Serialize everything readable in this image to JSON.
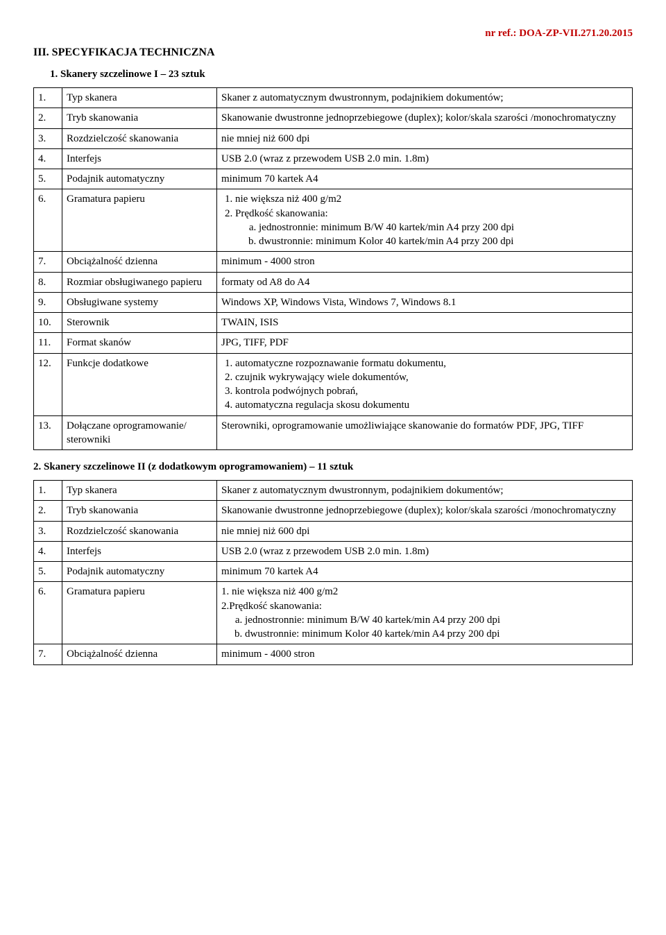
{
  "header": {
    "ref": "nr ref.: DOA-ZP-VII.271.20.2015"
  },
  "section_title": "III. SPECYFIKACJA TECHNICZNA",
  "table1_title": "1. Skanery szczelinowe I  – 23 sztuk",
  "t1": {
    "r1n": "1.",
    "r1l": "Typ skanera",
    "r1v": "Skaner z automatycznym dwustronnym, podajnikiem dokumentów;",
    "r2n": "2.",
    "r2l": "Tryb skanowania",
    "r2v": "Skanowanie dwustronne jednoprzebiegowe (duplex); kolor/skala szarości /monochromatyczny",
    "r3n": "3.",
    "r3l": "Rozdzielczość skanowania",
    "r3v": "nie mniej niż 600 dpi",
    "r4n": "4.",
    "r4l": "Interfejs",
    "r4v": "USB 2.0 (wraz z przewodem USB 2.0 min. 1.8m)",
    "r5n": "5.",
    "r5l": "Podajnik automatyczny",
    "r5v": "minimum  70  kartek A4",
    "r6n": "6.",
    "r6l": "Gramatura papieru",
    "r6_li1": "nie większa niż 400 g/m2",
    "r6_li2": "Prędkość skanowania:",
    "r6_a": "jednostronnie: minimum B/W 40 kartek/min A4 przy 200 dpi",
    "r6_b": "dwustronnie: minimum Kolor 40 kartek/min A4 przy 200 dpi",
    "r7n": "7.",
    "r7l": "Obciążalność dzienna",
    "r7v": "minimum - 4000 stron",
    "r8n": "8.",
    "r8l": "Rozmiar obsługiwanego papieru",
    "r8v": "formaty od A8 do A4",
    "r9n": "9.",
    "r9l": "Obsługiwane systemy",
    "r9v": "Windows XP, Windows Vista, Windows 7, Windows 8.1",
    "r10n": "10.",
    "r10l": "Sterownik",
    "r10v": "TWAIN, ISIS",
    "r11n": "11.",
    "r11l": "Format skanów",
    "r11v": "JPG, TIFF, PDF",
    "r12n": "12.",
    "r12l": "Funkcje dodatkowe",
    "r12_li1": "automatyczne rozpoznawanie formatu dokumentu,",
    "r12_li2": "czujnik wykrywający wiele dokumentów,",
    "r12_li3": "kontrola podwójnych pobrań,",
    "r12_li4": "automatyczna regulacja skosu dokumentu",
    "r13n": "13.",
    "r13l": "Dołączane oprogramowanie/ sterowniki",
    "r13v": "Sterowniki, oprogramowanie umożliwiające skanowanie do formatów PDF, JPG, TIFF"
  },
  "table2_title": "2. Skanery szczelinowe II  (z dodatkowym oprogramowaniem) – 11 sztuk",
  "t2": {
    "r1n": "1.",
    "r1l": "Typ skanera",
    "r1v": "Skaner z automatycznym dwustronnym, podajnikiem dokumentów;",
    "r2n": "2.",
    "r2l": "Tryb skanowania",
    "r2v": "Skanowanie dwustronne jednoprzebiegowe (duplex); kolor/skala szarości /monochromatyczny",
    "r3n": "3.",
    "r3l": "Rozdzielczość skanowania",
    "r3v": "nie mniej niż 600 dpi",
    "r4n": "4.",
    "r4l": "Interfejs",
    "r4v": "USB 2.0 (wraz z przewodem USB 2.0 min. 1.8m)",
    "r5n": "5.",
    "r5l": "Podajnik automatyczny",
    "r5v": "minimum  70  kartek A4",
    "r6n": "6.",
    "r6l": "Gramatura papieru",
    "r6_line1": "1. nie większa niż 400 g/m2",
    "r6_line2": "2.Prędkość skanowania:",
    "r6_a": "jednostronnie: minimum B/W 40 kartek/min A4 przy 200 dpi",
    "r6_b": "dwustronnie: minimum Kolor 40 kartek/min A4 przy 200 dpi",
    "r7n": "7.",
    "r7l": "Obciążalność dzienna",
    "r7v": "minimum - 4000 stron"
  }
}
